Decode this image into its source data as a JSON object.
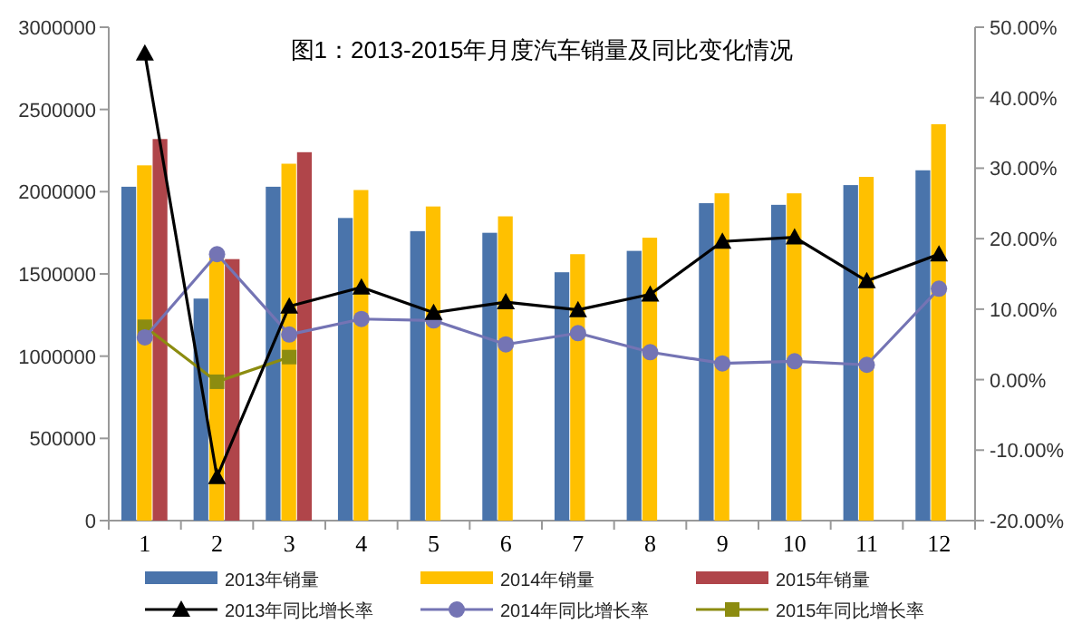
{
  "chart_data": {
    "type": "bar",
    "title": "图1：2013-2015年月度汽车销量及同比变化情况",
    "categories": [
      "1",
      "2",
      "3",
      "4",
      "5",
      "6",
      "7",
      "8",
      "9",
      "10",
      "11",
      "12"
    ],
    "series": [
      {
        "name": "2013年销量",
        "color": "#4a74ab",
        "values": [
          2030000,
          1350000,
          2030000,
          1840000,
          1760000,
          1750000,
          1510000,
          1640000,
          1930000,
          1920000,
          2040000,
          2130000
        ]
      },
      {
        "name": "2014年销量",
        "color": "#ffc000",
        "values": [
          2160000,
          1600000,
          2170000,
          2010000,
          1910000,
          1850000,
          1620000,
          1720000,
          1990000,
          1990000,
          2090000,
          2410000
        ]
      },
      {
        "name": "2015年销量",
        "color": "#b0454a",
        "values": [
          2320000,
          1590000,
          2240000,
          null,
          null,
          null,
          null,
          null,
          null,
          null,
          null,
          null
        ]
      },
      {
        "name": "2013年同比增长率",
        "type": "line",
        "axis": "y2",
        "marker": "triangle",
        "color": "#000000",
        "values": [
          46.3,
          -13.8,
          10.4,
          13.1,
          9.5,
          11.0,
          9.9,
          12.1,
          19.6,
          20.2,
          14.0,
          17.8
        ]
      },
      {
        "name": "2014年同比增长率",
        "type": "line",
        "axis": "y2",
        "marker": "circle",
        "color": "#7474b4",
        "values": [
          6.0,
          17.8,
          6.4,
          8.6,
          8.4,
          5.0,
          6.6,
          3.9,
          2.3,
          2.6,
          2.1,
          12.9
        ]
      },
      {
        "name": "2015年同比增长率",
        "type": "line",
        "axis": "y2",
        "marker": "square",
        "color": "#8c8c10",
        "values": [
          7.5,
          -0.3,
          3.2,
          null,
          null,
          null,
          null,
          null,
          null,
          null,
          null,
          null
        ]
      }
    ],
    "ylim": [
      0,
      3000000
    ],
    "yticks": [
      0,
      500000,
      1000000,
      1500000,
      2000000,
      2500000,
      3000000
    ],
    "y2lim": [
      -20,
      50
    ],
    "y2ticks": [
      {
        "value": -20,
        "label": "-20.00%"
      },
      {
        "value": -10,
        "label": "-10.00%"
      },
      {
        "value": 0,
        "label": "0.00%"
      },
      {
        "value": 10,
        "label": "10.00%"
      },
      {
        "value": 20,
        "label": "20.00%"
      },
      {
        "value": 30,
        "label": "30.00%"
      },
      {
        "value": 40,
        "label": "40.00%"
      },
      {
        "value": 50,
        "label": "50.00%"
      }
    ],
    "legend": "bottom",
    "grid": false
  }
}
